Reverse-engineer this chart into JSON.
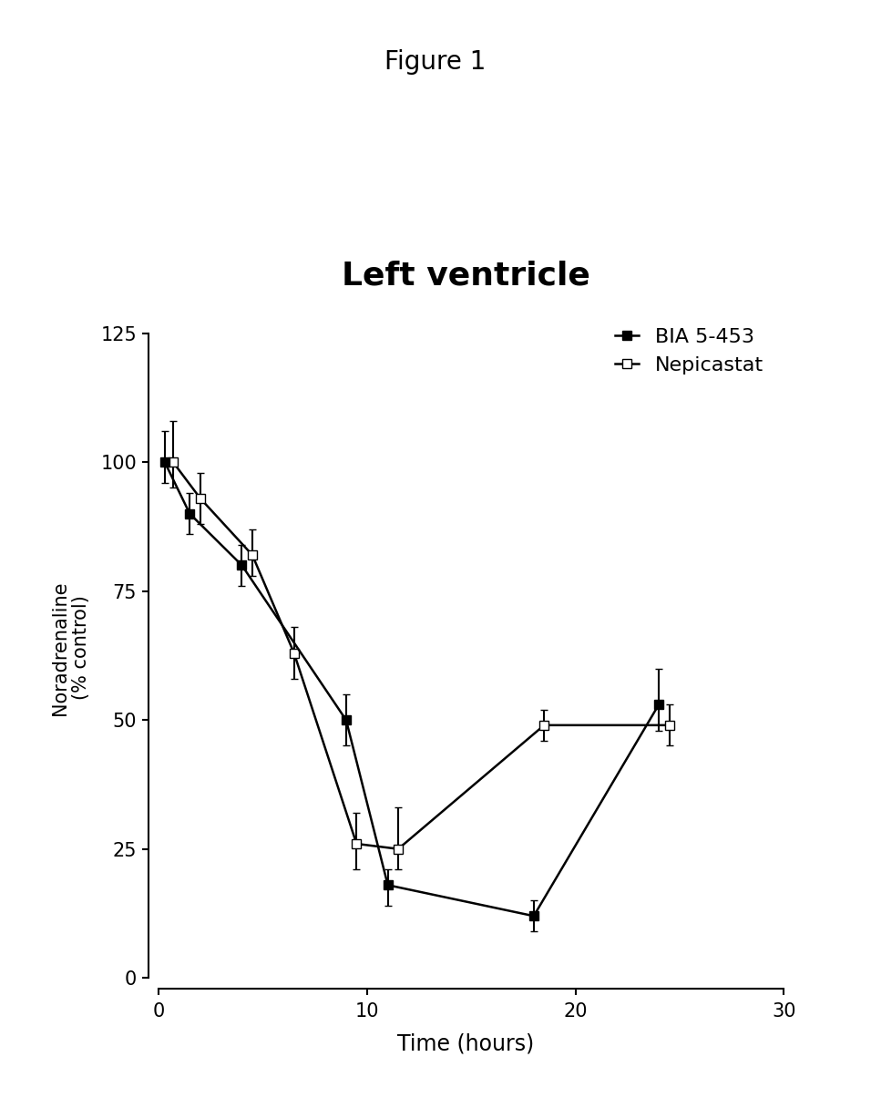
{
  "figure_title": "Figure 1",
  "chart_title": "Left ventricle",
  "xlabel": "Time (hours)",
  "ylabel": "Noradrenaline\n(% control)",
  "xlim": [
    -0.5,
    30
  ],
  "ylim": [
    -2,
    130
  ],
  "xticks": [
    0,
    10,
    20,
    30
  ],
  "yticks": [
    0,
    25,
    50,
    75,
    100,
    125
  ],
  "background_color": "#ffffff",
  "bia_x": [
    0.3,
    1.5,
    4,
    9,
    11,
    18,
    24
  ],
  "bia_y": [
    100,
    90,
    80,
    50,
    18,
    12,
    53
  ],
  "bia_yerr_lo": [
    4,
    4,
    4,
    5,
    4,
    3,
    5
  ],
  "bia_yerr_hi": [
    6,
    4,
    4,
    5,
    3,
    3,
    7
  ],
  "nep_x": [
    0.7,
    2,
    4.5,
    6.5,
    9.5,
    11.5,
    18.5,
    24.5
  ],
  "nep_y": [
    100,
    93,
    82,
    63,
    26,
    25,
    49,
    49
  ],
  "nep_yerr_lo": [
    5,
    5,
    4,
    5,
    5,
    4,
    3,
    4
  ],
  "nep_yerr_hi": [
    8,
    5,
    5,
    5,
    6,
    8,
    3,
    4
  ],
  "line_color": "#000000",
  "marker_size": 7,
  "linewidth": 1.8,
  "capsize": 3,
  "elinewidth": 1.5,
  "legend_labels": [
    "BIA 5-453",
    "Nepicastat"
  ],
  "figure_title_fontsize": 20,
  "chart_title_fontsize": 26,
  "tick_labelsize": 15,
  "xlabel_fontsize": 17,
  "ylabel_fontsize": 15,
  "legend_fontsize": 16
}
